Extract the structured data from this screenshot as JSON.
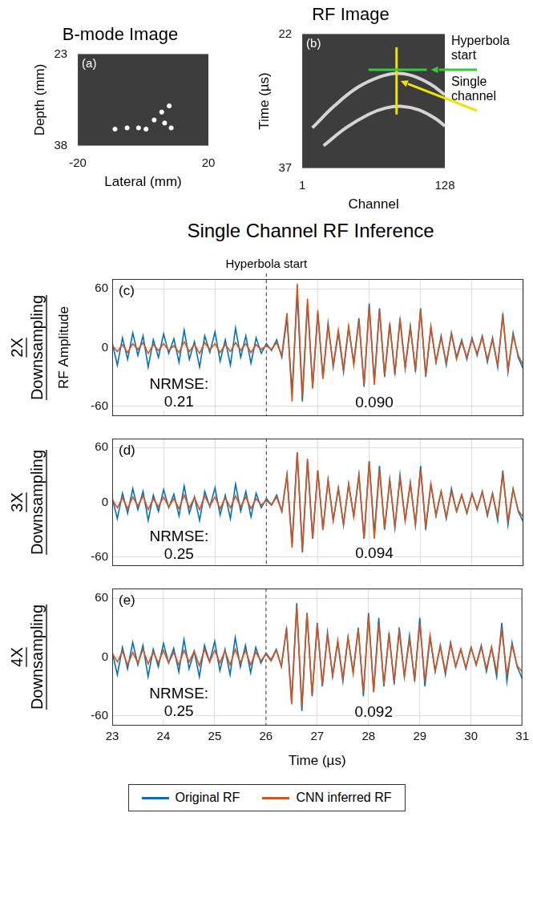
{
  "heading": "Single Channel RF Inference",
  "chart_data": [
    {
      "type": "image",
      "panel": "(a)",
      "title": "B-mode Image",
      "x_label": "Lateral (mm)",
      "y_label": "Depth (mm)",
      "xlim": [
        -20,
        20
      ],
      "xticks": [
        -20,
        20
      ],
      "ylim": [
        23,
        38
      ],
      "yticks": [
        23,
        38
      ],
      "grid": false,
      "points": {
        "x": [
          -8.6,
          -4.9,
          -1.4,
          0.9,
          3.4,
          5.7,
          8,
          8.6,
          6.6
        ],
        "y": [
          35.3,
          35.1,
          35.1,
          35.3,
          33.8,
          32.5,
          31.5,
          35.1,
          34.3
        ]
      }
    },
    {
      "type": "image",
      "panel": "(b)",
      "title": "RF Image",
      "x_label": "Channel",
      "y_label": "Time (µs)",
      "xlim": [
        1,
        128
      ],
      "xticks": [
        1,
        128
      ],
      "ylim": [
        22,
        37
      ],
      "yticks": [
        22,
        37
      ],
      "grid": false,
      "echoes": [
        {
          "x": [
            10,
            30,
            50,
            70,
            85,
            100,
            115,
            128
          ],
          "y": [
            32.5,
            30.0,
            28.0,
            26.8,
            26.4,
            26.7,
            27.6,
            28.8
          ]
        },
        {
          "x": [
            20,
            40,
            60,
            75,
            90,
            105,
            120,
            128
          ],
          "y": [
            34.5,
            32.5,
            31.0,
            30.3,
            30.1,
            30.5,
            31.5,
            32.3
          ]
        }
      ],
      "guides": [
        {
          "label": "Hyperbola start",
          "color": "#33cc33",
          "x": [
            60,
            112
          ],
          "y": [
            26,
            26
          ]
        },
        {
          "label": "Single channel",
          "color": "#f2e200",
          "x": [
            85,
            85
          ],
          "y": [
            23.5,
            31
          ]
        }
      ]
    },
    {
      "type": "line",
      "panel": "(c)",
      "row_label": "2X Downsampling",
      "y_label": "RF Amplitude",
      "xlim": [
        23,
        31
      ],
      "xticks": [
        23,
        24,
        25,
        26,
        27,
        28,
        29,
        30,
        31
      ],
      "ylim": [
        -70,
        70
      ],
      "yticks": [
        -60,
        0,
        60
      ],
      "grid": true,
      "tick_labels": "y",
      "vline": {
        "x": 26,
        "label": "Hyperbola start"
      },
      "annotations": [
        {
          "lines": [
            "NRMSE:",
            "0.21"
          ],
          "x": 24.3,
          "y": -38
        },
        {
          "lines": [
            "0.090"
          ],
          "x": 28.1,
          "y": -57
        }
      ],
      "x": [
        23,
        23.1,
        23.2,
        23.3,
        23.4,
        23.5,
        23.6,
        23.7,
        23.8,
        23.9,
        24,
        24.1,
        24.2,
        24.3,
        24.4,
        24.5,
        24.6,
        24.7,
        24.8,
        24.9,
        25,
        25.1,
        25.2,
        25.3,
        25.4,
        25.5,
        25.6,
        25.7,
        25.8,
        25.9,
        26,
        26.1,
        26.2,
        26.3,
        26.4,
        26.5,
        26.6,
        26.7,
        26.8,
        26.9,
        27,
        27.1,
        27.2,
        27.3,
        27.4,
        27.5,
        27.6,
        27.7,
        27.8,
        27.9,
        28,
        28.1,
        28.2,
        28.3,
        28.4,
        28.5,
        28.6,
        28.7,
        28.8,
        28.9,
        29,
        29.1,
        29.2,
        29.3,
        29.4,
        29.5,
        29.6,
        29.7,
        29.8,
        29.9,
        30,
        30.1,
        30.2,
        30.3,
        30.4,
        30.5,
        30.6,
        30.7,
        30.8,
        30.9,
        31
      ],
      "series": [
        {
          "name": "Original RF",
          "color": "#0072bd",
          "values": [
            5,
            -18,
            10,
            -12,
            15,
            -8,
            12,
            -20,
            8,
            -10,
            14,
            -6,
            9,
            -15,
            18,
            -12,
            6,
            -20,
            12,
            -5,
            16,
            -14,
            8,
            -18,
            20,
            -10,
            12,
            -16,
            10,
            -6,
            4,
            -3,
            8,
            -10,
            30,
            -45,
            55,
            -55,
            45,
            -40,
            35,
            -30,
            25,
            -20,
            15,
            -25,
            20,
            -15,
            30,
            -40,
            45,
            -35,
            40,
            -30,
            25,
            -28,
            30,
            -20,
            22,
            -25,
            40,
            -30,
            20,
            -15,
            12,
            -18,
            15,
            -10,
            8,
            -12,
            10,
            -8,
            12,
            -15,
            10,
            -20,
            35,
            -25,
            15,
            -10,
            -22
          ]
        },
        {
          "name": "CNN inferred RF",
          "color": "#d95319",
          "values": [
            2,
            -4,
            3,
            -5,
            4,
            -2,
            5,
            -6,
            3,
            -3,
            4,
            -3,
            2,
            -5,
            6,
            -4,
            3,
            -6,
            5,
            -2,
            4,
            -5,
            3,
            -4,
            5,
            -3,
            4,
            -5,
            3,
            -2,
            2,
            -2,
            5,
            -8,
            35,
            -55,
            65,
            -50,
            50,
            -42,
            38,
            -32,
            22,
            -18,
            18,
            -22,
            22,
            -18,
            28,
            -38,
            42,
            -38,
            38,
            -28,
            22,
            -25,
            28,
            -22,
            20,
            -22,
            38,
            -28,
            22,
            -15,
            10,
            -15,
            14,
            -12,
            6,
            -10,
            8,
            -6,
            10,
            -12,
            8,
            -18,
            32,
            -22,
            12,
            -8,
            -18
          ]
        }
      ]
    },
    {
      "type": "line",
      "panel": "(d)",
      "row_label": "3X Downsampling",
      "xlim": [
        23,
        31
      ],
      "xticks": [
        23,
        24,
        25,
        26,
        27,
        28,
        29,
        30,
        31
      ],
      "ylim": [
        -70,
        70
      ],
      "yticks": [
        -60,
        0,
        60
      ],
      "grid": true,
      "tick_labels": "y",
      "vline": {
        "x": 26
      },
      "annotations": [
        {
          "lines": [
            "NRMSE:",
            "0.25"
          ],
          "x": 24.3,
          "y": -38
        },
        {
          "lines": [
            "0.094"
          ],
          "x": 28.1,
          "y": -57
        }
      ],
      "x": [
        23,
        23.1,
        23.2,
        23.3,
        23.4,
        23.5,
        23.6,
        23.7,
        23.8,
        23.9,
        24,
        24.1,
        24.2,
        24.3,
        24.4,
        24.5,
        24.6,
        24.7,
        24.8,
        24.9,
        25,
        25.1,
        25.2,
        25.3,
        25.4,
        25.5,
        25.6,
        25.7,
        25.8,
        25.9,
        26,
        26.1,
        26.2,
        26.3,
        26.4,
        26.5,
        26.6,
        26.7,
        26.8,
        26.9,
        27,
        27.1,
        27.2,
        27.3,
        27.4,
        27.5,
        27.6,
        27.7,
        27.8,
        27.9,
        28,
        28.1,
        28.2,
        28.3,
        28.4,
        28.5,
        28.6,
        28.7,
        28.8,
        28.9,
        29,
        29.1,
        29.2,
        29.3,
        29.4,
        29.5,
        29.6,
        29.7,
        29.8,
        29.9,
        30,
        30.1,
        30.2,
        30.3,
        30.4,
        30.5,
        30.6,
        30.7,
        30.8,
        30.9,
        31
      ],
      "series": [
        {
          "name": "Original RF",
          "color": "#0072bd",
          "values": [
            5,
            -18,
            10,
            -12,
            15,
            -8,
            12,
            -20,
            8,
            -10,
            14,
            -6,
            9,
            -15,
            18,
            -12,
            6,
            -20,
            12,
            -5,
            16,
            -14,
            8,
            -18,
            20,
            -10,
            12,
            -16,
            10,
            -6,
            4,
            -3,
            8,
            -10,
            30,
            -45,
            55,
            -55,
            45,
            -40,
            35,
            -30,
            25,
            -20,
            15,
            -25,
            20,
            -15,
            30,
            -40,
            45,
            -35,
            40,
            -30,
            25,
            -28,
            30,
            -20,
            22,
            -25,
            40,
            -30,
            20,
            -15,
            12,
            -18,
            15,
            -10,
            8,
            -12,
            10,
            -8,
            12,
            -15,
            10,
            -20,
            35,
            -25,
            15,
            -10,
            -22
          ]
        },
        {
          "name": "CNN inferred RF",
          "color": "#d95319",
          "values": [
            3,
            -6,
            5,
            -7,
            6,
            -4,
            7,
            -8,
            4,
            -5,
            6,
            -5,
            4,
            -7,
            8,
            -6,
            5,
            -8,
            7,
            -4,
            6,
            -7,
            5,
            -6,
            7,
            -5,
            6,
            -7,
            4,
            -3,
            2,
            -3,
            6,
            -10,
            30,
            -50,
            55,
            -52,
            48,
            -40,
            35,
            -30,
            24,
            -20,
            16,
            -24,
            20,
            -16,
            30,
            -40,
            45,
            -40,
            36,
            -30,
            24,
            -26,
            26,
            -20,
            20,
            -24,
            36,
            -26,
            20,
            -14,
            12,
            -16,
            12,
            -10,
            8,
            -12,
            9,
            -7,
            11,
            -13,
            9,
            -16,
            30,
            -20,
            14,
            -9,
            -16
          ]
        }
      ]
    },
    {
      "type": "line",
      "panel": "(e)",
      "row_label": "4X Downsampling",
      "x_label": "Time (µs)",
      "xlim": [
        23,
        31
      ],
      "xticks": [
        23,
        24,
        25,
        26,
        27,
        28,
        29,
        30,
        31
      ],
      "ylim": [
        -70,
        70
      ],
      "yticks": [
        -60,
        0,
        60
      ],
      "grid": true,
      "legend": "bottom",
      "vline": {
        "x": 26
      },
      "annotations": [
        {
          "lines": [
            "NRMSE:",
            "0.25"
          ],
          "x": 24.3,
          "y": -38
        },
        {
          "lines": [
            "0.092"
          ],
          "x": 28.1,
          "y": -57
        }
      ],
      "x": [
        23,
        23.1,
        23.2,
        23.3,
        23.4,
        23.5,
        23.6,
        23.7,
        23.8,
        23.9,
        24,
        24.1,
        24.2,
        24.3,
        24.4,
        24.5,
        24.6,
        24.7,
        24.8,
        24.9,
        25,
        25.1,
        25.2,
        25.3,
        25.4,
        25.5,
        25.6,
        25.7,
        25.8,
        25.9,
        26,
        26.1,
        26.2,
        26.3,
        26.4,
        26.5,
        26.6,
        26.7,
        26.8,
        26.9,
        27,
        27.1,
        27.2,
        27.3,
        27.4,
        27.5,
        27.6,
        27.7,
        27.8,
        27.9,
        28,
        28.1,
        28.2,
        28.3,
        28.4,
        28.5,
        28.6,
        28.7,
        28.8,
        28.9,
        29,
        29.1,
        29.2,
        29.3,
        29.4,
        29.5,
        29.6,
        29.7,
        29.8,
        29.9,
        30,
        30.1,
        30.2,
        30.3,
        30.4,
        30.5,
        30.6,
        30.7,
        30.8,
        30.9,
        31
      ],
      "series": [
        {
          "name": "Original RF",
          "color": "#0072bd",
          "values": [
            5,
            -18,
            10,
            -12,
            15,
            -8,
            12,
            -20,
            8,
            -10,
            14,
            -6,
            9,
            -15,
            18,
            -12,
            6,
            -20,
            12,
            -5,
            16,
            -14,
            8,
            -18,
            20,
            -10,
            12,
            -16,
            10,
            -6,
            4,
            -3,
            8,
            -10,
            30,
            -45,
            55,
            -55,
            45,
            -40,
            35,
            -30,
            25,
            -20,
            15,
            -25,
            20,
            -15,
            30,
            -40,
            45,
            -35,
            40,
            -30,
            25,
            -28,
            30,
            -20,
            22,
            -25,
            40,
            -30,
            20,
            -15,
            12,
            -18,
            15,
            -10,
            8,
            -12,
            10,
            -8,
            12,
            -15,
            10,
            -20,
            35,
            -25,
            15,
            -10,
            -22
          ]
        },
        {
          "name": "CNN inferred RF",
          "color": "#d95319",
          "values": [
            4,
            -5,
            6,
            -8,
            5,
            -6,
            8,
            -7,
            5,
            -6,
            7,
            -6,
            5,
            -8,
            7,
            -5,
            6,
            -9,
            8,
            -5,
            7,
            -6,
            6,
            -8,
            8,
            -6,
            7,
            -8,
            5,
            -4,
            3,
            -4,
            7,
            -9,
            28,
            -48,
            52,
            -50,
            45,
            -38,
            33,
            -28,
            22,
            -18,
            17,
            -22,
            20,
            -17,
            28,
            -36,
            42,
            -36,
            34,
            -28,
            22,
            -24,
            26,
            -20,
            18,
            -22,
            34,
            -25,
            22,
            -14,
            11,
            -15,
            13,
            -10,
            8,
            -11,
            10,
            -8,
            10,
            -12,
            10,
            -15,
            28,
            -18,
            12,
            -9,
            -15
          ]
        }
      ]
    }
  ]
}
